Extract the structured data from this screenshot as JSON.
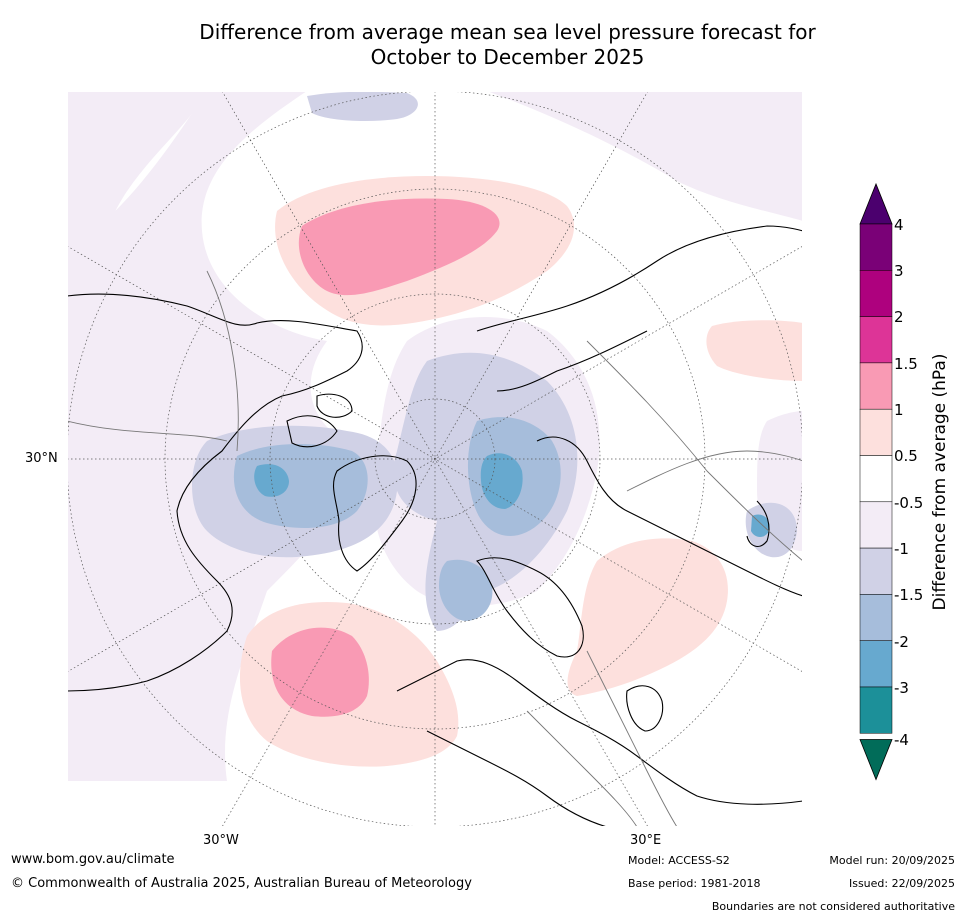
{
  "title_line1": "Difference from average mean sea level pressure forecast for",
  "title_line2": "October to December 2025",
  "axis_labels": {
    "lat_30n": "30°N",
    "lon_30w": "30°W",
    "lon_30e": "30°E"
  },
  "colorbar": {
    "label": "Difference from average (hPa)",
    "ticks": [
      "4",
      "3",
      "2",
      "1.5",
      "1",
      "0.5",
      "-0.5",
      "-1",
      "-1.5",
      "-2",
      "-3",
      "-4"
    ],
    "colors": {
      "over": "#4b006e",
      "b_3_4": "#7a0177",
      "b_2_3": "#ae017e",
      "b_15_2": "#dd3497",
      "b_1_15": "#f99ab4",
      "b_05_1": "#fde0dd",
      "b_n05_05": "#ffffff",
      "b_n1_n05": "#f3ecf6",
      "b_n15_n1": "#d0d1e6",
      "b_n2_n15": "#a6bddb",
      "b_n3_n2": "#67a9cf",
      "b_n4_n3": "#1c9099",
      "under": "#016c59"
    }
  },
  "footer": {
    "url": "www.bom.gov.au/climate",
    "copyright": "© Commonwealth of Australia 2025, Australian Bureau of Meteorology",
    "model": "Model: ACCESS-S2",
    "base_period": "Base period: 1981-2018",
    "model_run": "Model run: 20/09/2025",
    "issued": "Issued: 22/09/2025",
    "disclaimer": "Boundaries are not considered authoritative"
  }
}
